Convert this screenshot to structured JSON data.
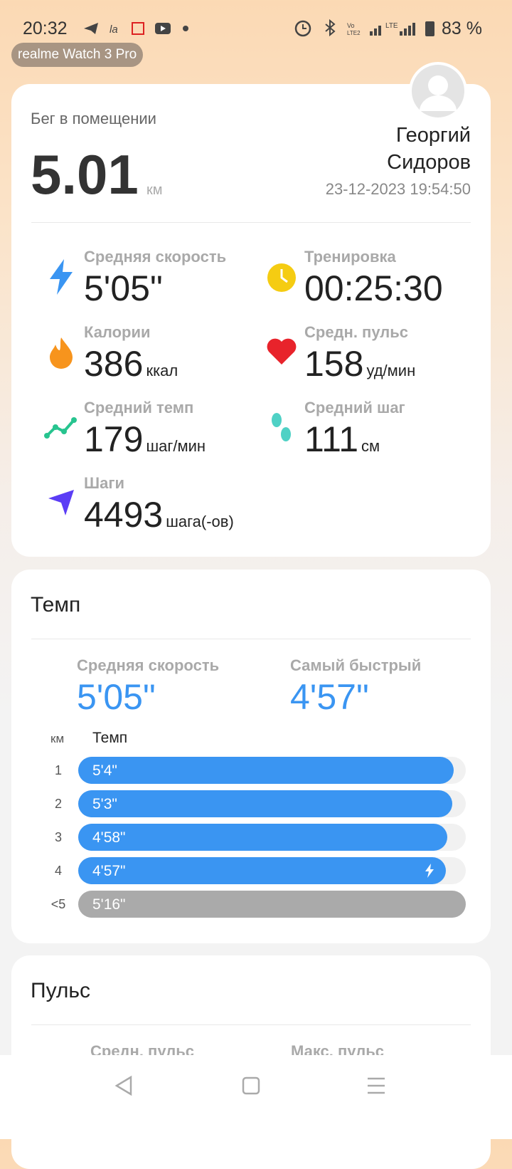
{
  "status_bar": {
    "time": "20:32",
    "battery": "83 %"
  },
  "device": "realme Watch 3 Pro",
  "summary": {
    "activity": "Бег в помещении",
    "distance": "5.01",
    "distance_unit": "км",
    "first_name": "Георгий",
    "last_name": "Сидоров",
    "datetime": "23-12-2023 19:54:50"
  },
  "metrics": [
    {
      "label": "Средняя скорость",
      "value": "5'05\""
    },
    {
      "label": "Тренировка",
      "value": "00:25:30"
    },
    {
      "label": "Калории",
      "value": "386",
      "unit": "ккал"
    },
    {
      "label": "Средн. пульс",
      "value": "158",
      "unit": "уд/мин"
    },
    {
      "label": "Средний темп",
      "value": "179",
      "unit": "шаг/мин"
    },
    {
      "label": "Средний шаг",
      "value": "111",
      "unit": "см"
    },
    {
      "label": "Шаги",
      "value": "4493",
      "unit": "шага(-ов)"
    }
  ],
  "pace": {
    "title": "Темп",
    "avg_label": "Средняя скорость",
    "avg_value": "5'05\"",
    "best_label": "Самый быстрый",
    "best_value": "4'57\"",
    "col_km": "км",
    "col_pace": "Темп",
    "splits": [
      {
        "km": "1",
        "pace": "5'4\""
      },
      {
        "km": "2",
        "pace": "5'3\""
      },
      {
        "km": "3",
        "pace": "4'58\""
      },
      {
        "km": "4",
        "pace": "4'57\""
      },
      {
        "km": "<5",
        "pace": "5'16\""
      }
    ]
  },
  "pulse": {
    "title": "Пульс",
    "avg_label": "Средн. пульс",
    "max_label": "Макс. пульс"
  }
}
